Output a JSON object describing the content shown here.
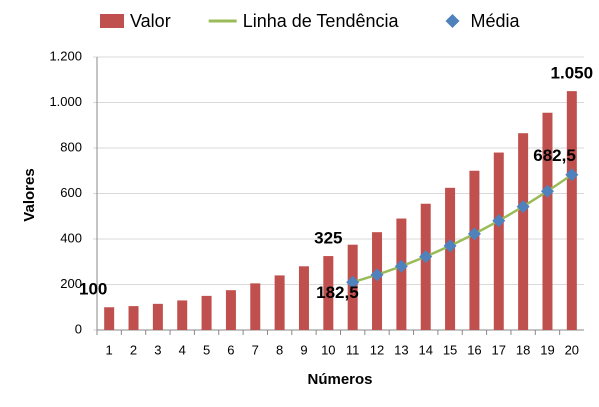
{
  "chart_data": {
    "type": "bar",
    "xlabel": "Números",
    "ylabel": "Valores",
    "categories": [
      "1",
      "2",
      "3",
      "4",
      "5",
      "6",
      "7",
      "8",
      "9",
      "10",
      "11",
      "12",
      "13",
      "14",
      "15",
      "16",
      "17",
      "18",
      "19",
      "20"
    ],
    "series": [
      {
        "name": "Valor",
        "type": "bar",
        "color": "#c0504d",
        "values": [
          100,
          105,
          115,
          130,
          150,
          175,
          205,
          240,
          280,
          325,
          375,
          430,
          490,
          555,
          625,
          700,
          780,
          865,
          955,
          1050
        ],
        "value_labels": [
          "100",
          null,
          null,
          null,
          null,
          null,
          null,
          null,
          null,
          "325",
          null,
          null,
          null,
          null,
          null,
          null,
          null,
          null,
          null,
          "1.050"
        ]
      },
      {
        "name": "Linha de Tendência",
        "type": "line",
        "color": "#9bbb59",
        "values": [
          null,
          null,
          null,
          null,
          null,
          null,
          null,
          null,
          null,
          null,
          210,
          242.5,
          280,
          322.5,
          370,
          422.5,
          480,
          542.5,
          610,
          682.5
        ]
      },
      {
        "name": "Média",
        "type": "scatter",
        "color": "#4f81bd",
        "values": [
          null,
          null,
          null,
          null,
          null,
          null,
          null,
          null,
          null,
          null,
          210,
          242.5,
          280,
          322.5,
          370,
          422.5,
          480,
          542.5,
          610,
          682.5
        ],
        "value_labels": [
          null,
          null,
          null,
          null,
          null,
          null,
          null,
          null,
          null,
          null,
          null,
          null,
          null,
          null,
          null,
          null,
          null,
          null,
          null,
          "682,5"
        ]
      }
    ],
    "annotations": [
      {
        "text": "182,5",
        "x": "11",
        "y": 182.5
      }
    ],
    "ylim": [
      0,
      1200
    ],
    "yticks": [
      0,
      200,
      400,
      600,
      800,
      {
        "value": 1000,
        "label": "1.000"
      },
      {
        "value": 1200,
        "label": "1.200"
      }
    ],
    "grid": true,
    "legend": "top"
  }
}
